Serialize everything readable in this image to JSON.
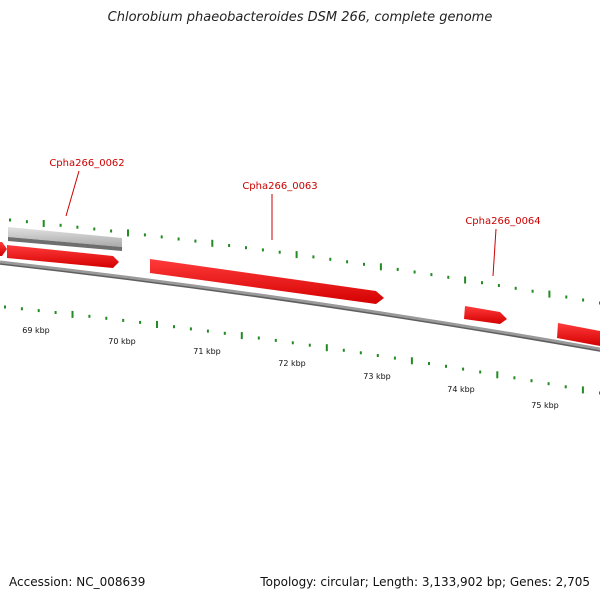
{
  "title": "Chlorobium phaeobacteroides DSM 266, complete genome",
  "accession_text": "Accession: NC_008639",
  "summary_text": "Topology: circular; Length: 3,133,902 bp; Genes: 2,705",
  "colors": {
    "gene": "#ff0000",
    "gene_other": "#bdbdbd",
    "backbone": "#777777",
    "ticks": "#228b22",
    "label": "#cc0000"
  },
  "scale_labels": [
    "69 kbp",
    "70 kbp",
    "71 kbp",
    "72 kbp",
    "73 kbp",
    "74 kbp",
    "75 kbp"
  ],
  "genes": [
    {
      "name": "Cpha266_0062",
      "labeled": true
    },
    {
      "name": "Cpha266_0063",
      "labeled": true
    },
    {
      "name": "Cpha266_0064",
      "labeled": true
    }
  ]
}
